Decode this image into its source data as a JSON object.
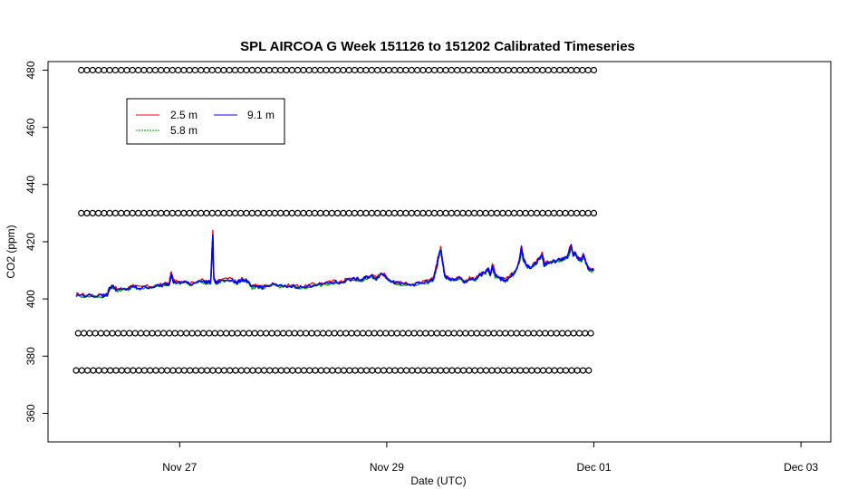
{
  "chart_data": {
    "type": "line",
    "title": "SPL AIRCOA G  Week 151126 to 151202  Calibrated Timeseries",
    "xlabel": "Date (UTC)",
    "ylabel": "CO2 (ppm)",
    "x_axis": {
      "unit": "days since Nov 26 00:00 UTC",
      "range": [
        0,
        7
      ],
      "ticks": [
        {
          "x": 1,
          "label": "Nov 27"
        },
        {
          "x": 3,
          "label": "Nov 29"
        },
        {
          "x": 5,
          "label": "Dec 01"
        },
        {
          "x": 7,
          "label": "Dec 03"
        }
      ]
    },
    "y_axis": {
      "range": [
        350,
        483
      ],
      "ticks": [
        {
          "y": 360,
          "label": "360"
        },
        {
          "y": 380,
          "label": "380"
        },
        {
          "y": 400,
          "label": "400"
        },
        {
          "y": 420,
          "label": "420"
        },
        {
          "y": 440,
          "label": "440"
        },
        {
          "y": 460,
          "label": "460"
        },
        {
          "y": 480,
          "label": "480"
        }
      ]
    },
    "legend": {
      "placement": "top-left",
      "entries": [
        {
          "label": "2.5 m",
          "color": "#ff0000"
        },
        {
          "label": "5.8 m",
          "color": "#00aa00"
        },
        {
          "label": "9.1 m",
          "color": "#0000ff"
        }
      ]
    },
    "series": [
      {
        "name": "2.5 m",
        "color": "#ff0000",
        "offset": 0.9
      },
      {
        "name": "5.8 m",
        "color": "#00aa00",
        "offset": -0.7
      },
      {
        "name": "9.1 m",
        "color": "#0000ff",
        "offset": 0
      }
    ],
    "co2_points": [
      [
        0.0,
        401.3
      ],
      [
        0.1,
        401.2
      ],
      [
        0.25,
        401.0
      ],
      [
        0.3,
        401.5
      ],
      [
        0.32,
        403.5
      ],
      [
        0.35,
        404.5
      ],
      [
        0.4,
        403.0
      ],
      [
        0.5,
        403.5
      ],
      [
        0.55,
        404.5
      ],
      [
        0.6,
        403.8
      ],
      [
        0.7,
        404.2
      ],
      [
        0.8,
        404.5
      ],
      [
        0.85,
        405.0
      ],
      [
        0.9,
        405.2
      ],
      [
        0.92,
        409.0
      ],
      [
        0.94,
        406.0
      ],
      [
        1.0,
        405.5
      ],
      [
        1.05,
        406.2
      ],
      [
        1.1,
        405.0
      ],
      [
        1.2,
        406.5
      ],
      [
        1.25,
        405.8
      ],
      [
        1.3,
        406.0
      ],
      [
        1.32,
        422.5
      ],
      [
        1.33,
        407.0
      ],
      [
        1.35,
        405.5
      ],
      [
        1.4,
        406.5
      ],
      [
        1.5,
        406.8
      ],
      [
        1.55,
        405.5
      ],
      [
        1.6,
        406.8
      ],
      [
        1.65,
        406.2
      ],
      [
        1.7,
        404.0
      ],
      [
        1.75,
        404.5
      ],
      [
        1.8,
        404.0
      ],
      [
        1.9,
        405.0
      ],
      [
        2.0,
        404.3
      ],
      [
        2.1,
        404.5
      ],
      [
        2.2,
        404.0
      ],
      [
        2.3,
        405.0
      ],
      [
        2.4,
        405.2
      ],
      [
        2.5,
        406.0
      ],
      [
        2.55,
        405.5
      ],
      [
        2.6,
        406.5
      ],
      [
        2.7,
        407.0
      ],
      [
        2.75,
        406.5
      ],
      [
        2.8,
        407.5
      ],
      [
        2.85,
        408.0
      ],
      [
        2.9,
        407.2
      ],
      [
        2.95,
        409.0
      ],
      [
        3.0,
        407.5
      ],
      [
        3.05,
        406.0
      ],
      [
        3.1,
        405.5
      ],
      [
        3.2,
        405.0
      ],
      [
        3.3,
        405.2
      ],
      [
        3.4,
        406.0
      ],
      [
        3.45,
        406.8
      ],
      [
        3.48,
        411.0
      ],
      [
        3.5,
        414.5
      ],
      [
        3.52,
        417.5
      ],
      [
        3.54,
        413.0
      ],
      [
        3.56,
        408.0
      ],
      [
        3.6,
        407.0
      ],
      [
        3.65,
        406.5
      ],
      [
        3.7,
        407.5
      ],
      [
        3.75,
        405.8
      ],
      [
        3.8,
        407.0
      ],
      [
        3.85,
        406.5
      ],
      [
        3.9,
        408.5
      ],
      [
        3.95,
        409.0
      ],
      [
        3.98,
        410.5
      ],
      [
        4.0,
        408.5
      ],
      [
        4.02,
        411.5
      ],
      [
        4.05,
        408.0
      ],
      [
        4.1,
        407.0
      ],
      [
        4.15,
        406.5
      ],
      [
        4.2,
        408.0
      ],
      [
        4.25,
        410.0
      ],
      [
        4.28,
        413.0
      ],
      [
        4.3,
        417.5
      ],
      [
        4.32,
        414.0
      ],
      [
        4.35,
        411.5
      ],
      [
        4.4,
        411.0
      ],
      [
        4.45,
        413.0
      ],
      [
        4.5,
        415.5
      ],
      [
        4.52,
        412.0
      ],
      [
        4.55,
        412.5
      ],
      [
        4.6,
        413.0
      ],
      [
        4.65,
        413.5
      ],
      [
        4.7,
        414.0
      ],
      [
        4.75,
        415.0
      ],
      [
        4.78,
        418.5
      ],
      [
        4.8,
        415.5
      ],
      [
        4.82,
        416.0
      ],
      [
        4.85,
        414.0
      ],
      [
        4.88,
        413.5
      ],
      [
        4.9,
        415.5
      ],
      [
        4.92,
        413.0
      ],
      [
        4.95,
        410.5
      ],
      [
        5.0,
        410.0
      ]
    ],
    "marker_rows": [
      {
        "y": 480,
        "x_start": 0.05,
        "x_end": 5.0
      },
      {
        "y": 430,
        "x_start": 0.05,
        "x_end": 5.0
      },
      {
        "y": 388,
        "x_start": 0.02,
        "x_end": 5.0
      },
      {
        "y": 375,
        "x_start": 0.0,
        "x_end": 5.0
      }
    ],
    "marker_spacing": 0.055
  }
}
